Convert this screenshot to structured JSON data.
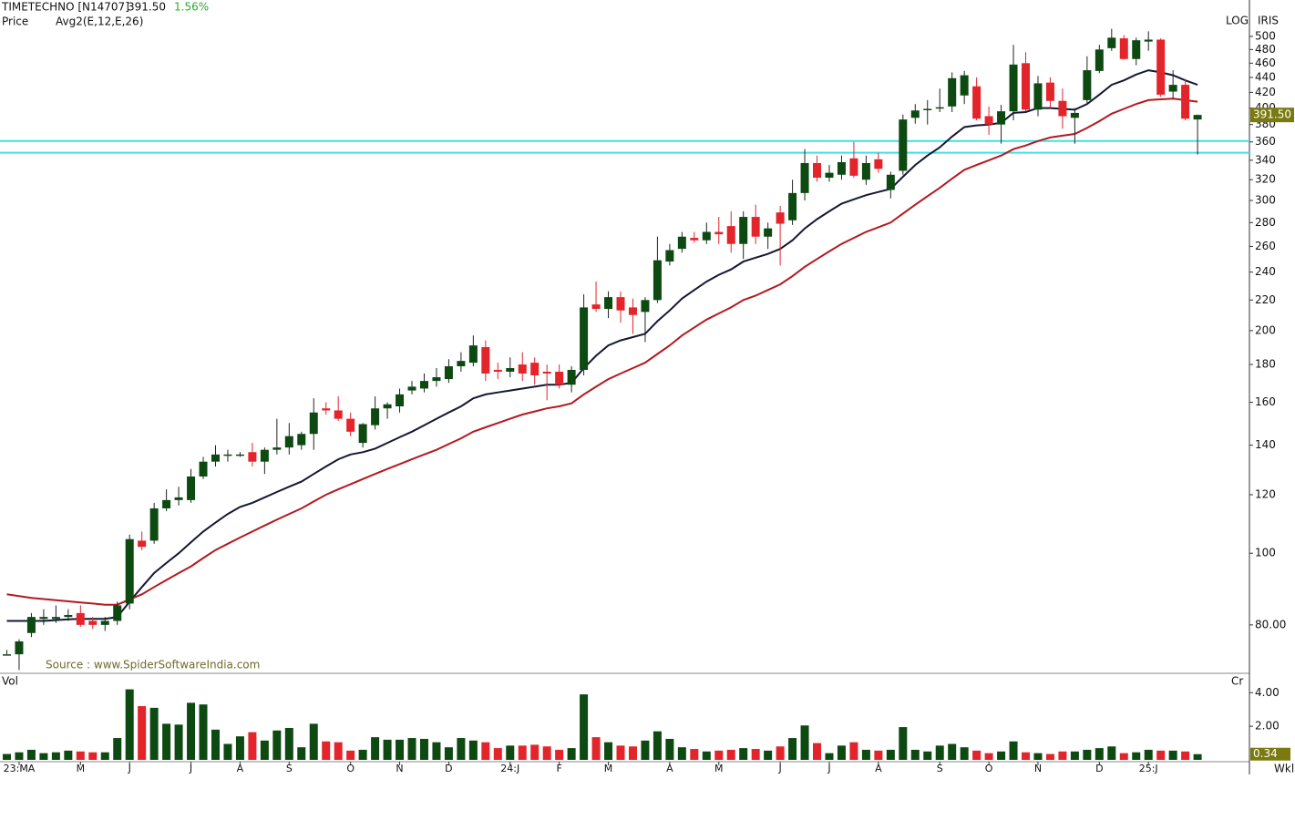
{
  "chart_data": {
    "type": "candlestick",
    "title": "TIMETECHNO [N14707]",
    "last_price": {
      "value": 391.5,
      "label": "391.50"
    },
    "change": {
      "value": 1.56,
      "label": "1.56%"
    },
    "indicator_label": "Price",
    "indicator": "Avg2(E,12,E,26)",
    "scale_label": "LOG",
    "source_label": "IRIS",
    "annotation": "Source : www.SpiderSoftwareIndia.com",
    "period": "Wkl",
    "log_scale": true,
    "up_color": "#0d4a12",
    "down_color": "#e3242b",
    "categories": [
      null,
      "23:MA",
      null,
      null,
      null,
      null,
      "M",
      null,
      null,
      null,
      "J",
      null,
      null,
      null,
      null,
      "J",
      null,
      null,
      null,
      "A",
      null,
      null,
      null,
      "S",
      null,
      null,
      null,
      null,
      "O",
      null,
      null,
      null,
      "N",
      null,
      null,
      null,
      "D",
      null,
      null,
      null,
      null,
      "24:J",
      null,
      null,
      null,
      "F",
      null,
      null,
      null,
      "M",
      null,
      null,
      null,
      null,
      "A",
      null,
      null,
      null,
      "M",
      null,
      null,
      null,
      null,
      "J",
      null,
      null,
      null,
      "J",
      null,
      null,
      null,
      "A",
      null,
      null,
      null,
      null,
      "S",
      null,
      null,
      null,
      "O",
      null,
      null,
      null,
      "N",
      null,
      null,
      null,
      null,
      "D",
      null,
      null,
      null,
      "25:J",
      null,
      null,
      null,
      null
    ],
    "open": [
      73,
      73,
      78,
      81.5,
      81.5,
      82,
      83,
      81,
      80,
      81,
      85.5,
      104,
      104,
      115,
      118,
      118,
      127,
      133,
      136,
      136,
      137,
      133,
      138,
      139,
      140,
      145,
      157,
      156,
      152,
      141,
      149,
      157,
      158,
      166,
      167,
      171,
      172,
      179,
      181,
      190,
      177,
      176,
      180,
      181,
      176,
      176,
      169,
      177,
      217,
      214,
      222,
      215,
      212,
      220,
      248,
      258,
      267,
      265,
      272,
      277,
      262,
      285,
      268,
      289,
      282,
      307,
      337,
      322,
      325,
      342,
      320,
      341,
      310,
      329,
      388,
      398,
      400,
      402,
      416,
      428,
      390,
      380,
      396,
      460,
      398,
      433,
      409,
      388,
      410,
      449,
      482,
      497,
      466,
      492,
      495,
      421,
      430,
      386
    ],
    "high": [
      74,
      76.5,
      83,
      84,
      85,
      84,
      85,
      82,
      82,
      86,
      106,
      107,
      117,
      122,
      123,
      130,
      135,
      140,
      138,
      137,
      141,
      139,
      152,
      150,
      146,
      162,
      160,
      163,
      155,
      150,
      163,
      160,
      167,
      171,
      175,
      178,
      183,
      187,
      197,
      194,
      181,
      184,
      187,
      184,
      180,
      180,
      179,
      224,
      233,
      226,
      226,
      221,
      222,
      268,
      262,
      272,
      272,
      280,
      285,
      290,
      290,
      296,
      280,
      295,
      320,
      352,
      345,
      335,
      345,
      360,
      345,
      348,
      328,
      392,
      405,
      410,
      425,
      447,
      449,
      440,
      402,
      404,
      487,
      476,
      442,
      440,
      425,
      400,
      470,
      487,
      512,
      502,
      498,
      508,
      497,
      450,
      438,
      392
    ],
    "low": [
      73,
      69.5,
      77,
      80,
      80.5,
      81,
      79.5,
      79,
      78.5,
      80,
      84,
      101,
      103,
      114,
      116,
      117,
      126,
      131,
      133,
      135,
      131,
      128,
      136,
      136,
      138,
      138,
      154,
      151,
      144,
      139,
      147,
      152,
      155,
      164,
      165,
      168,
      170,
      176,
      179,
      171,
      172,
      173,
      171,
      169,
      161,
      167,
      165,
      174,
      212,
      208,
      205,
      198,
      193,
      218,
      245,
      255,
      263,
      262,
      262,
      255,
      250,
      262,
      258,
      245,
      278,
      300,
      318,
      318,
      320,
      322,
      315,
      327,
      302,
      325,
      381,
      380,
      395,
      395,
      405,
      385,
      368,
      358,
      385,
      396,
      390,
      400,
      375,
      358,
      405,
      446,
      478,
      465,
      457,
      478,
      414,
      412,
      385,
      346
    ],
    "close": [
      73,
      76,
      82,
      82,
      82,
      82.5,
      80,
      80,
      81,
      85,
      104.5,
      102,
      115,
      118,
      119,
      127,
      133,
      136,
      136,
      136,
      133,
      138,
      139,
      144,
      145,
      155,
      156,
      152,
      146,
      149.5,
      157,
      159,
      164,
      168,
      171,
      173,
      179,
      182,
      191,
      175,
      176,
      178,
      175,
      174,
      175,
      169,
      177,
      215,
      214,
      222,
      213,
      210,
      220,
      249,
      257,
      268,
      265,
      272,
      270,
      262,
      285,
      268,
      275,
      279,
      307,
      337,
      322,
      327,
      338,
      324,
      337,
      331,
      325,
      386,
      397,
      399,
      401,
      439,
      443,
      387,
      380,
      396,
      458,
      398,
      432,
      409,
      390,
      394,
      450,
      480,
      498,
      466,
      494,
      495,
      417,
      430,
      387,
      391.5
    ],
    "ema": [
      {
        "color": "#141833",
        "values": [
          81,
          81,
          81,
          81,
          81.2,
          81.4,
          81.5,
          81.5,
          81.5,
          82,
          86,
          90,
          94,
          97,
          100,
          103.5,
          107,
          110,
          113,
          115.5,
          117,
          119,
          121,
          123,
          125,
          128,
          131,
          134,
          136,
          137,
          138.5,
          141,
          143.5,
          146,
          149,
          152,
          155,
          158,
          162,
          164,
          165,
          166,
          167,
          168,
          169,
          169,
          170,
          178,
          185,
          191,
          194,
          196,
          198,
          206,
          213,
          221,
          227,
          233,
          238,
          242,
          248,
          251,
          254,
          258,
          265,
          275,
          283,
          290,
          297,
          301,
          305,
          308,
          311,
          323,
          335,
          345,
          354,
          366,
          377,
          379,
          380,
          382,
          394,
          395,
          400,
          400,
          399,
          398,
          405,
          417,
          430,
          436,
          444,
          450,
          447,
          443,
          436,
          430
        ]
      },
      {
        "color": "#b3191f",
        "values": [
          88,
          87.5,
          87,
          86.7,
          86.4,
          86.1,
          85.8,
          85.5,
          85.2,
          85.2,
          86.6,
          88,
          90,
          92,
          94,
          96,
          98.5,
          101,
          103,
          105,
          107,
          109,
          111,
          113,
          115,
          117.5,
          120,
          122,
          124,
          126,
          128,
          130,
          132,
          134,
          136,
          138,
          140.5,
          143,
          146,
          148,
          150,
          152,
          154,
          155.5,
          157,
          158,
          159.5,
          164,
          168,
          172,
          175,
          178,
          181,
          186,
          191,
          197,
          202,
          207,
          211,
          215,
          220,
          223,
          227,
          231,
          237,
          244,
          250,
          256,
          262,
          267,
          272,
          276,
          280,
          288,
          296,
          304,
          312,
          321,
          330,
          335,
          340,
          345,
          352,
          356,
          361,
          365,
          367,
          369,
          376,
          384,
          393,
          399,
          405,
          410,
          411,
          412,
          410,
          408
        ]
      }
    ],
    "hlines": {
      "color": "#3fe0e8",
      "values": [
        361,
        348
      ]
    },
    "ylim": [
      69,
      560
    ],
    "yticks": [
      {
        "value": 80,
        "label": "80.00"
      },
      100,
      120,
      140,
      160,
      180,
      200,
      220,
      240,
      260,
      280,
      300,
      320,
      340,
      360,
      380,
      400,
      420,
      440,
      460,
      480,
      500
    ],
    "volume": {
      "label": "Vol",
      "unit": "Cr",
      "values": [
        0.35,
        0.45,
        0.6,
        0.4,
        0.45,
        0.55,
        0.5,
        0.45,
        0.45,
        1.3,
        4.2,
        3.2,
        3.1,
        2.15,
        2.1,
        3.4,
        3.3,
        1.8,
        0.95,
        1.4,
        1.65,
        1.15,
        1.75,
        1.9,
        0.75,
        2.15,
        1.1,
        1.05,
        0.55,
        0.6,
        1.35,
        1.2,
        1.2,
        1.3,
        1.25,
        1.05,
        0.75,
        1.3,
        1.15,
        1.05,
        0.7,
        0.85,
        0.85,
        0.9,
        0.8,
        0.6,
        0.7,
        3.9,
        1.35,
        1.05,
        0.85,
        0.8,
        1.15,
        1.7,
        1.25,
        0.75,
        0.65,
        0.5,
        0.55,
        0.6,
        0.7,
        0.65,
        0.55,
        0.8,
        1.3,
        2.05,
        1.0,
        0.4,
        0.85,
        1.05,
        0.6,
        0.55,
        0.6,
        1.95,
        0.6,
        0.5,
        0.85,
        0.95,
        0.75,
        0.55,
        0.4,
        0.5,
        1.1,
        0.45,
        0.4,
        0.35,
        0.5,
        0.5,
        0.6,
        0.7,
        0.8,
        0.4,
        0.45,
        0.6,
        0.55,
        0.55,
        0.5,
        0.34
      ],
      "ylim": [
        0,
        5.1
      ],
      "yticks": [
        {
          "value": 2,
          "label": "2.00"
        },
        {
          "value": 4,
          "label": "4.00"
        }
      ]
    }
  }
}
